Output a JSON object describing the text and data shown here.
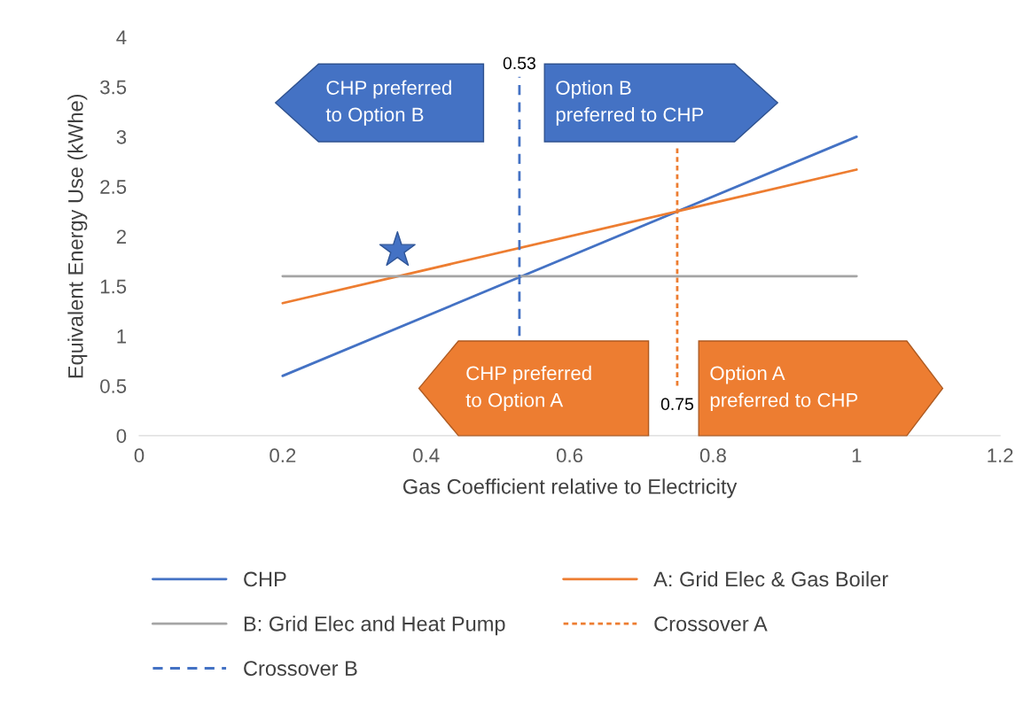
{
  "chart_data": {
    "type": "line",
    "xlabel": "Gas Coefficient relative to Electricity",
    "ylabel": "Equivalent Energy Use (kWhe)",
    "xlim": [
      0,
      1.2
    ],
    "xticks": [
      0,
      0.2,
      0.4,
      0.6,
      0.8,
      1,
      1.2
    ],
    "ylim": [
      0,
      4
    ],
    "yticks": [
      0,
      0.5,
      1,
      1.5,
      2,
      2.5,
      3,
      3.5,
      4
    ],
    "grid": false,
    "legend": "bottom",
    "series": [
      {
        "name": "CHP",
        "color": "#4472c4",
        "x": [
          0.2,
          1
        ],
        "values": [
          0.6,
          3.0
        ]
      },
      {
        "name": "A: Grid Elec & Gas Boiler",
        "color": "#ed7d31",
        "x": [
          0.2,
          1
        ],
        "values": [
          1.33,
          2.67
        ]
      },
      {
        "name": "B: Grid Elec and Heat Pump",
        "color": "#a5a5a5",
        "x": [
          0.2,
          1
        ],
        "values": [
          1.6,
          1.6
        ]
      },
      {
        "name": "Crossover A",
        "color": "#ed7d31",
        "line_style": "dotted",
        "x": [
          0.75,
          0.75
        ],
        "values": [
          0.5,
          2.9
        ]
      },
      {
        "name": "Crossover B",
        "color": "#4472c4",
        "line_style": "dashed",
        "x": [
          0.53,
          0.53
        ],
        "values": [
          1.0,
          3.6
        ]
      },
      {
        "type": "scatter",
        "marker": "star",
        "color": "#4472c4",
        "x": [
          0.36
        ],
        "values": [
          1.86
        ]
      }
    ],
    "annotations": [
      "CHP preferred\nto Option B",
      "Option B\npreferred to CHP",
      "CHP preferred\nto Option A",
      "Option A\npreferred to CHP",
      {
        "text": "0.53",
        "x": 0.53,
        "y": 3.6
      },
      {
        "text": "0.75",
        "x": 0.75,
        "y": 0.5
      }
    ]
  }
}
